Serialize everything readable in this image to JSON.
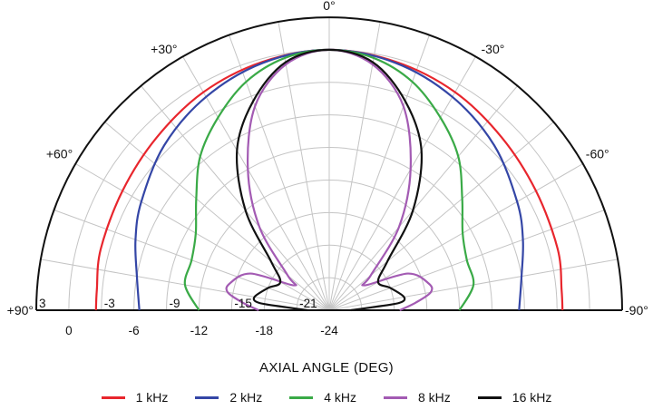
{
  "chart_data": {
    "type": "polar",
    "xlabel": "AXIAL ANGLE (DEG)",
    "angle_labels": [
      {
        "angle": 0,
        "text": "0°"
      },
      {
        "angle": 30,
        "text": "-30°"
      },
      {
        "angle": 60,
        "text": "-60°"
      },
      {
        "angle": 90,
        "text": "-90°"
      },
      {
        "angle": -30,
        "text": "+30°"
      },
      {
        "angle": -60,
        "text": "+60°"
      },
      {
        "angle": -90,
        "text": "+90°"
      }
    ],
    "radial_ticks": [
      {
        "db": 3,
        "text": "3",
        "row": "upper"
      },
      {
        "db": 0,
        "text": "0",
        "row": "lower"
      },
      {
        "db": -3,
        "text": "-3",
        "row": "upper"
      },
      {
        "db": -6,
        "text": "-6",
        "row": "lower"
      },
      {
        "db": -9,
        "text": "-9",
        "row": "upper"
      },
      {
        "db": -12,
        "text": "-12",
        "row": "lower"
      },
      {
        "db": -15,
        "text": "-15",
        "row": "upper"
      },
      {
        "db": -18,
        "text": "-18",
        "row": "lower"
      },
      {
        "db": -21,
        "text": "-21",
        "row": "upper"
      },
      {
        "db": -24,
        "text": "-24",
        "row": "lower"
      }
    ],
    "range_db": [
      -24,
      3
    ],
    "grid": true,
    "legend_position": "bottom",
    "series": [
      {
        "name": "1 kHz",
        "color": "#e8262d",
        "points": [
          [
            0,
            0
          ],
          [
            15,
            -0.3
          ],
          [
            30,
            -0.8
          ],
          [
            45,
            -1.5
          ],
          [
            60,
            -2
          ],
          [
            75,
            -2.2
          ],
          [
            85,
            -2.5
          ],
          [
            90,
            -2.5
          ]
        ]
      },
      {
        "name": "2 kHz",
        "color": "#3446a6",
        "points": [
          [
            0,
            0
          ],
          [
            15,
            -0.4
          ],
          [
            30,
            -1.3
          ],
          [
            45,
            -2.5
          ],
          [
            60,
            -4
          ],
          [
            70,
            -5
          ],
          [
            80,
            -6
          ],
          [
            90,
            -6.5
          ]
        ]
      },
      {
        "name": "4 kHz",
        "color": "#3aaa47",
        "points": [
          [
            0,
            0
          ],
          [
            10,
            -0.4
          ],
          [
            20,
            -1.6
          ],
          [
            30,
            -3.5
          ],
          [
            40,
            -5.5
          ],
          [
            50,
            -8
          ],
          [
            60,
            -9.8
          ],
          [
            70,
            -10.5
          ],
          [
            80,
            -10.5
          ],
          [
            90,
            -12
          ]
        ]
      },
      {
        "name": "8 kHz",
        "color": "#a35bb3",
        "points": [
          [
            0,
            0
          ],
          [
            10,
            -1
          ],
          [
            20,
            -4
          ],
          [
            30,
            -9
          ],
          [
            40,
            -14
          ],
          [
            50,
            -19
          ],
          [
            55,
            -20
          ],
          [
            65,
            -16
          ],
          [
            75,
            -14.5
          ],
          [
            80,
            -14.5
          ],
          [
            85,
            -16
          ],
          [
            90,
            -17.5
          ]
        ]
      },
      {
        "name": "16 kHz",
        "color": "#111111",
        "points": [
          [
            0,
            0
          ],
          [
            10,
            -0.8
          ],
          [
            20,
            -3.5
          ],
          [
            30,
            -7
          ],
          [
            40,
            -12
          ],
          [
            50,
            -17
          ],
          [
            60,
            -18.8
          ],
          [
            70,
            -18
          ],
          [
            80,
            -17
          ],
          [
            84,
            -17.5
          ],
          [
            86,
            -20
          ],
          [
            90,
            -22
          ]
        ]
      }
    ]
  }
}
